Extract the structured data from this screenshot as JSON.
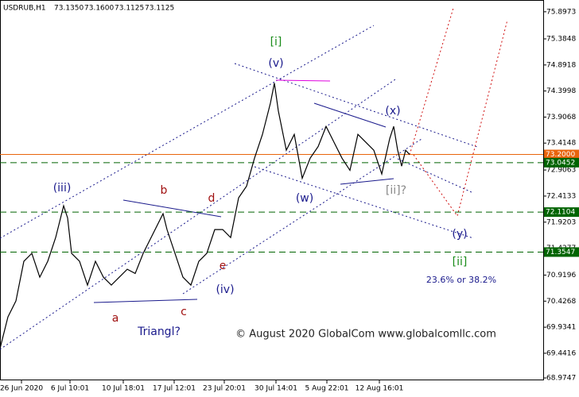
{
  "chart_data": {
    "type": "line",
    "title": "USDRUB,H1",
    "quote": [
      "73.1350",
      "73.1600",
      "73.1125",
      "73.1125"
    ],
    "x": [
      0,
      2,
      4,
      6,
      8,
      10,
      12,
      14,
      16,
      17,
      18,
      20,
      22,
      24,
      26,
      28,
      30,
      32,
      34,
      36,
      38,
      40,
      41,
      42,
      44,
      46,
      48,
      50,
      52,
      54,
      56,
      58,
      60,
      62,
      64,
      66,
      68,
      69,
      70,
      72,
      74,
      76,
      78,
      80,
      82,
      84,
      86,
      88,
      90,
      92,
      94,
      96,
      98,
      99,
      100,
      101,
      102,
      103
    ],
    "values": [
      69.53,
      70.13,
      70.43,
      71.18,
      71.33,
      70.88,
      71.18,
      71.63,
      72.23,
      72.0,
      71.33,
      71.18,
      70.73,
      71.18,
      70.88,
      70.73,
      70.88,
      71.03,
      70.95,
      71.33,
      71.63,
      71.93,
      72.08,
      71.78,
      71.33,
      70.88,
      70.73,
      71.18,
      71.33,
      71.78,
      71.78,
      71.63,
      72.38,
      72.6,
      73.13,
      73.58,
      74.17,
      74.55,
      74.02,
      73.28,
      73.58,
      72.75,
      73.13,
      73.35,
      73.73,
      73.43,
      73.13,
      72.9,
      73.58,
      73.43,
      73.28,
      72.83,
      73.5,
      73.73,
      73.28,
      72.98,
      73.28,
      73.2
    ],
    "color": "#000000",
    "xlim": [
      0,
      136.6
    ],
    "xticks": [
      {
        "value": 5.4,
        "label": "26 Jun 2020"
      },
      {
        "value": 17.6,
        "label": "6 Jul 10:01"
      },
      {
        "value": 31,
        "label": "10 Jul 18:01"
      },
      {
        "value": 43.8,
        "label": "17 Jul 12:01"
      },
      {
        "value": 56.4,
        "label": "23 Jul 20:01"
      },
      {
        "value": 69.4,
        "label": "30 Jul 14:01"
      },
      {
        "value": 82.2,
        "label": "5 Aug 22:01"
      },
      {
        "value": 95.4,
        "label": "12 Aug 16:01"
      }
    ],
    "ylim": [
      68.93,
      76.12
    ],
    "yticks": [
      68.9747,
      69.4416,
      69.9341,
      70.4268,
      70.9196,
      71.4277,
      71.9203,
      72.4133,
      72.9063,
      73.4148,
      73.9068,
      74.3998,
      74.8918,
      75.3848,
      75.8973
    ],
    "levels": [
      {
        "value": 73.2,
        "label": "73.2000",
        "color": "#e8640c"
      },
      {
        "value": 73.0452,
        "label": "73.0452",
        "color": "#006400"
      },
      {
        "value": 72.1104,
        "label": "72.1104",
        "color": "#006400"
      },
      {
        "value": 71.3547,
        "label": "71.3547",
        "color": "#006400"
      }
    ],
    "annotations": [
      "[i]",
      "(v)",
      "(x)",
      "(w)",
      "[ii]?",
      "(y)",
      "[ii]",
      "23.6% or 38.2%",
      "(iii)",
      "b",
      "d",
      "e",
      "(iv)",
      "a",
      "c",
      "Triangl?",
      "© August 2020 GlobalCom www.globalcomllc.com"
    ]
  }
}
